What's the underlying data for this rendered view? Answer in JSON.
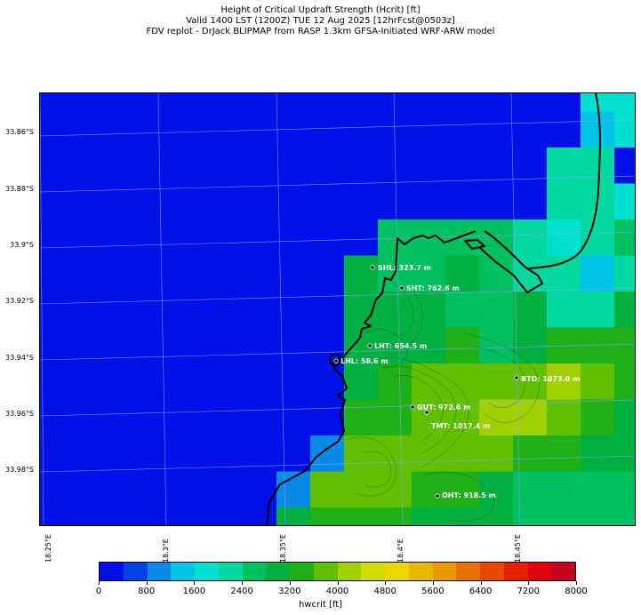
{
  "title": {
    "line1": "Height of Critical Updraft Strength (Hcrit) [ft]",
    "line2": "Valid 1400 LST (1200Z) TUE 12 Aug 2025 [12hrFcst@0503z]",
    "line3": "FDV replot - DrJack BLIPMAP from RASP 1.3km GFSA-Initiated WRF-ARW model"
  },
  "axes": {
    "lat_ticks": [
      "33.86°S",
      "33.88°S",
      "33.9°S",
      "33.92°S",
      "33.94°S",
      "33.96°S",
      "33.98°S"
    ],
    "lon_ticks": [
      "18.25°E",
      "18.3°E",
      "18.35°E",
      "18.4°E",
      "18.45°E"
    ]
  },
  "colorbar": {
    "label": "hwcrit [ft]",
    "tick_labels": [
      "0",
      "800",
      "1600",
      "2400",
      "3200",
      "4000",
      "4800",
      "5600",
      "6400",
      "7200",
      "8000"
    ],
    "colors": [
      "#0010e8",
      "#0042e8",
      "#0a8ae8",
      "#00c3e8",
      "#00e0d0",
      "#00d8a0",
      "#00c060",
      "#00b040",
      "#20b018",
      "#60c000",
      "#a0d000",
      "#d0dc00",
      "#e8d800",
      "#e8b800",
      "#e89800",
      "#e87000",
      "#e84800",
      "#e82000",
      "#e00010",
      "#c80020"
    ]
  },
  "stations": [
    {
      "code": "SHL",
      "label": "SHL: 323.7 m"
    },
    {
      "code": "SHT",
      "label": "SHT: 762.6 m"
    },
    {
      "code": "LHT",
      "label": "LHT: 654.5 m"
    },
    {
      "code": "LHL",
      "label": "LHL: 58.6 m"
    },
    {
      "code": "BTO",
      "label": "BTO: 1073.0 m"
    },
    {
      "code": "GUT",
      "label": "GUT: 972.6 m"
    },
    {
      "code": "TMT",
      "label": "TMT: 1017.4 m"
    },
    {
      "code": "OHT",
      "label": "OHT: 918.5 m"
    }
  ]
}
